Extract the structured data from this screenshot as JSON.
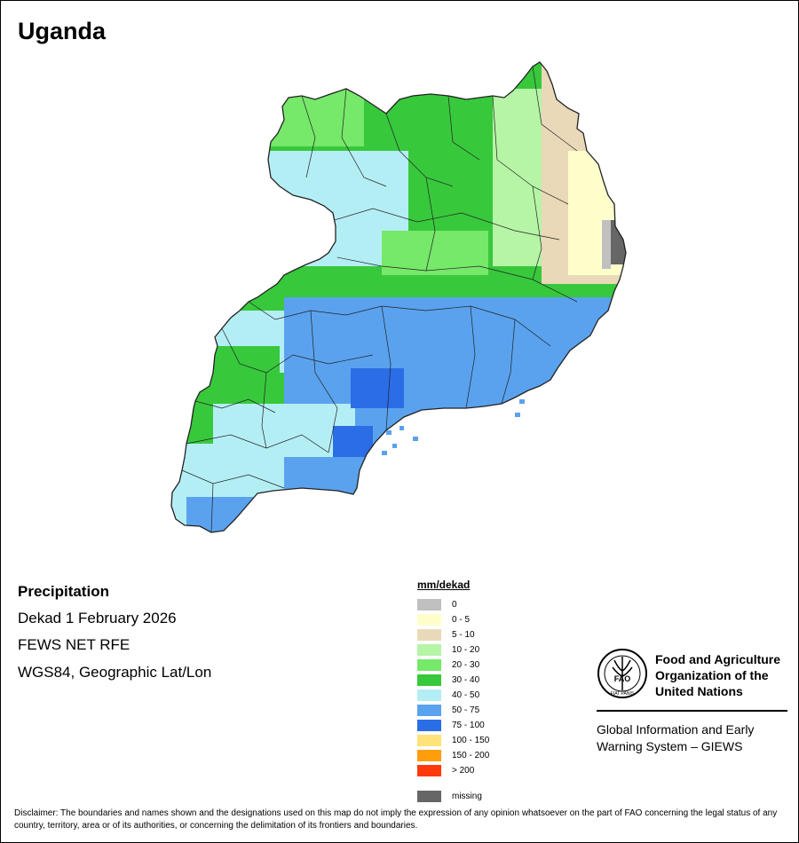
{
  "map": {
    "country": "Uganda",
    "variable": "Precipitation",
    "period": "Dekad 1 February 2026",
    "source": "FEWS NET RFE",
    "projection": "WGS84, Geographic Lat/Lon"
  },
  "legend": {
    "title": "mm/dekad",
    "classes": [
      {
        "label": "0",
        "color": "#c0c0c0"
      },
      {
        "label": "0 - 5",
        "color": "#ffffcc"
      },
      {
        "label": "5 - 10",
        "color": "#ead9b8"
      },
      {
        "label": "10 - 20",
        "color": "#b6f5a6"
      },
      {
        "label": "20 - 30",
        "color": "#76e86a"
      },
      {
        "label": "30 - 40",
        "color": "#38c83c"
      },
      {
        "label": "40 - 50",
        "color": "#b4eef5"
      },
      {
        "label": "50 - 75",
        "color": "#5aa2ee"
      },
      {
        "label": "75 - 100",
        "color": "#2b6de6"
      },
      {
        "label": "100 - 150",
        "color": "#ffe27a"
      },
      {
        "label": "150 - 200",
        "color": "#ff9d0a"
      },
      {
        "label": "> 200",
        "color": "#ff3a0a"
      }
    ],
    "missing": {
      "label": "missing",
      "color": "#666666"
    }
  },
  "organization": {
    "name_line1": "Food and Agriculture",
    "name_line2": "Organization of the",
    "name_line3": "United Nations",
    "logo_text": "FAO",
    "logo_motto": "FIAT PANIS",
    "system_line1": "Global Information and Early",
    "system_line2": "Warning System – GIEWS"
  },
  "disclaimer": "Disclaimer: The boundaries and names shown and the designations used on this map do not imply the expression of any opinion whatsoever on the part of FAO concerning the legal status of any country, territory, area or of its authorities, or concerning the delimitation of its frontiers and boundaries."
}
